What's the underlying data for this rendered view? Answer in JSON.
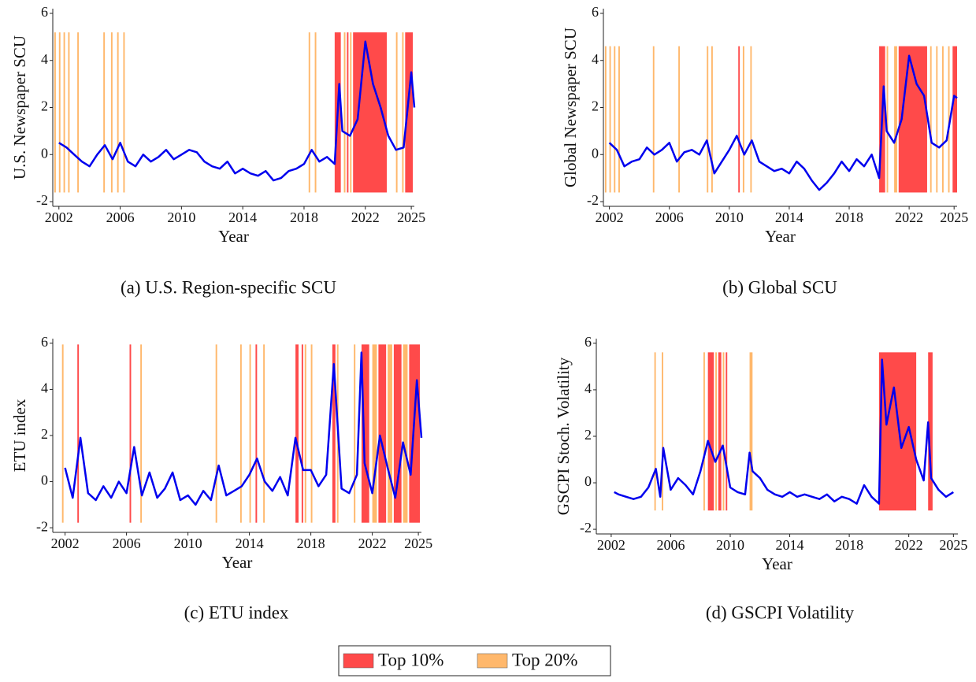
{
  "legend": {
    "items": [
      "Top 10%",
      "Top 20%"
    ],
    "colors": [
      "#ff4a4a",
      "#ffb86c"
    ]
  },
  "chart_data": [
    {
      "type": "line",
      "caption": "(a) U.S. Region-specific SCU",
      "x_label": "Year",
      "y_label": "U.S. Newspaper SCU",
      "color": "#0000ee",
      "xlim": [
        2001.6,
        2025.2
      ],
      "ylim": [
        -2.2,
        6.2
      ],
      "xticks": [
        2002,
        2006,
        2010,
        2014,
        2018,
        2022,
        2025
      ],
      "yticks": [
        -2,
        0,
        2,
        4,
        6
      ],
      "x": [
        2002,
        2002.5,
        2003,
        2003.5,
        2004,
        2004.5,
        2005,
        2005.5,
        2006,
        2006.5,
        2007,
        2007.5,
        2008,
        2008.5,
        2009,
        2009.5,
        2010,
        2010.5,
        2011,
        2011.5,
        2012,
        2012.5,
        2013,
        2013.5,
        2014,
        2014.5,
        2015,
        2015.5,
        2016,
        2016.5,
        2017,
        2017.5,
        2018,
        2018.5,
        2019,
        2019.5,
        2020,
        2020.3,
        2020.5,
        2021,
        2021.5,
        2022,
        2022.5,
        2023,
        2023.5,
        2024,
        2024.5,
        2025,
        2025.2
      ],
      "values": [
        0.5,
        0.3,
        0,
        -0.3,
        -0.5,
        0,
        0.4,
        -0.2,
        0.5,
        -0.3,
        -0.5,
        0,
        -0.3,
        -0.1,
        0.2,
        -0.2,
        0,
        0.2,
        0.1,
        -0.3,
        -0.5,
        -0.6,
        -0.3,
        -0.8,
        -0.6,
        -0.8,
        -0.9,
        -0.7,
        -1.1,
        -1,
        -0.7,
        -0.6,
        -0.4,
        0.2,
        -0.3,
        -0.1,
        -0.4,
        3,
        1,
        0.8,
        1.5,
        4.8,
        3,
        2,
        0.8,
        0.2,
        0.3,
        3.5,
        2
      ],
      "bands": [
        [
          [
            2020,
            2020.4
          ],
          [
            2020.8,
            2020.9
          ],
          [
            2021.2,
            2023.4
          ],
          [
            2024.6,
            2025.1
          ]
        ],
        [
          [
            2001.7,
            2001.8
          ],
          [
            2002,
            2002.1
          ],
          [
            2002.3,
            2002.4
          ],
          [
            2002.6,
            2002.7
          ],
          [
            2003.2,
            2003.3
          ],
          [
            2004.9,
            2005
          ],
          [
            2005.4,
            2005.5
          ],
          [
            2005.8,
            2005.9
          ],
          [
            2006.2,
            2006.3
          ],
          [
            2018.3,
            2018.4
          ],
          [
            2018.7,
            2018.8
          ],
          [
            2020.6,
            2020.7
          ],
          [
            2021,
            2021.1
          ],
          [
            2024,
            2024.1
          ],
          [
            2024.4,
            2024.5
          ]
        ]
      ]
    },
    {
      "type": "line",
      "caption": "(b) Global SCU",
      "x_label": "Year",
      "y_label": "Global Newspaper SCU",
      "color": "#0000ee",
      "xlim": [
        2001.6,
        2025.2
      ],
      "ylim": [
        -2.2,
        6.2
      ],
      "xticks": [
        2002,
        2006,
        2010,
        2014,
        2018,
        2022,
        2025
      ],
      "yticks": [
        -2,
        0,
        2,
        4,
        6
      ],
      "x": [
        2002,
        2002.5,
        2003,
        2003.5,
        2004,
        2004.5,
        2005,
        2005.5,
        2006,
        2006.5,
        2007,
        2007.5,
        2008,
        2008.5,
        2009,
        2009.5,
        2010,
        2010.5,
        2011,
        2011.5,
        2012,
        2012.5,
        2013,
        2013.5,
        2014,
        2014.5,
        2015,
        2015.5,
        2016,
        2016.5,
        2017,
        2017.5,
        2018,
        2018.5,
        2019,
        2019.5,
        2020,
        2020.3,
        2020.5,
        2021,
        2021.5,
        2022,
        2022.5,
        2023,
        2023.5,
        2024,
        2024.5,
        2025,
        2025.2
      ],
      "values": [
        0.5,
        0.2,
        -0.5,
        -0.3,
        -0.2,
        0.3,
        0,
        0.2,
        0.5,
        -0.3,
        0.1,
        0.2,
        0,
        0.6,
        -0.8,
        -0.3,
        0.2,
        0.8,
        0,
        0.6,
        -0.3,
        -0.5,
        -0.7,
        -0.6,
        -0.8,
        -0.3,
        -0.6,
        -1.1,
        -1.5,
        -1.2,
        -0.8,
        -0.3,
        -0.7,
        -0.2,
        -0.5,
        0,
        -1,
        2.9,
        1,
        0.5,
        1.5,
        4.2,
        3,
        2.5,
        0.5,
        0.3,
        0.6,
        2.5,
        2.4
      ],
      "bands": [
        [
          [
            2010.6,
            2010.7
          ],
          [
            2020,
            2020.4
          ],
          [
            2021.3,
            2023.2
          ],
          [
            2024.9,
            2025.2
          ]
        ],
        [
          [
            2001.7,
            2001.8
          ],
          [
            2002,
            2002.1
          ],
          [
            2002.3,
            2002.4
          ],
          [
            2002.6,
            2002.7
          ],
          [
            2004.9,
            2005
          ],
          [
            2006.6,
            2006.7
          ],
          [
            2008.5,
            2008.6
          ],
          [
            2008.8,
            2008.9
          ],
          [
            2010.9,
            2011
          ],
          [
            2011.4,
            2011.5
          ],
          [
            2020.5,
            2020.6
          ],
          [
            2021,
            2021.2
          ],
          [
            2023.4,
            2023.5
          ],
          [
            2023.8,
            2023.9
          ],
          [
            2024.2,
            2024.3
          ],
          [
            2024.6,
            2024.7
          ]
        ]
      ]
    },
    {
      "type": "line",
      "caption": "(c) ETU index",
      "x_label": "Year",
      "y_label": "ETU index",
      "color": "#0000ee",
      "xlim": [
        2001.2,
        2025.2
      ],
      "ylim": [
        -2.2,
        6.2
      ],
      "xticks": [
        2002,
        2006,
        2010,
        2014,
        2018,
        2022,
        2025
      ],
      "yticks": [
        -2,
        0,
        2,
        4,
        6
      ],
      "x": [
        2002,
        2002.5,
        2003,
        2003.5,
        2004,
        2004.5,
        2005,
        2005.5,
        2006,
        2006.5,
        2007,
        2007.5,
        2008,
        2008.5,
        2009,
        2009.5,
        2010,
        2010.5,
        2011,
        2011.5,
        2012,
        2012.5,
        2013,
        2013.5,
        2014,
        2014.5,
        2015,
        2015.5,
        2016,
        2016.5,
        2017,
        2017.5,
        2018,
        2018.5,
        2019,
        2019.5,
        2020,
        2020.5,
        2021,
        2021.3,
        2021.5,
        2022,
        2022.5,
        2023,
        2023.5,
        2024,
        2024.5,
        2024.9,
        2025.2
      ],
      "values": [
        0.6,
        -0.7,
        1.9,
        -0.5,
        -0.8,
        -0.2,
        -0.7,
        0,
        -0.5,
        1.5,
        -0.6,
        0.4,
        -0.7,
        -0.3,
        0.4,
        -0.8,
        -0.6,
        -1,
        -0.4,
        -0.8,
        0.7,
        -0.6,
        -0.4,
        -0.2,
        0.3,
        1,
        0,
        -0.4,
        0.2,
        -0.6,
        1.9,
        0.5,
        0.5,
        -0.2,
        0.3,
        5.1,
        -0.3,
        -0.5,
        0.3,
        5.6,
        0.8,
        -0.5,
        2,
        0.6,
        -0.7,
        1.7,
        0.3,
        4.4,
        1.9
      ],
      "bands": [
        [
          [
            2002.8,
            2002.9
          ],
          [
            2006.2,
            2006.3
          ],
          [
            2014.4,
            2014.5
          ],
          [
            2017,
            2017.2
          ],
          [
            2017.4,
            2017.5
          ],
          [
            2019.4,
            2019.6
          ],
          [
            2021.3,
            2021.8
          ],
          [
            2022.4,
            2022.9
          ],
          [
            2023.4,
            2023.9
          ],
          [
            2024.4,
            2025.1
          ]
        ],
        [
          [
            2001.8,
            2001.9
          ],
          [
            2006.9,
            2007
          ],
          [
            2011.8,
            2011.9
          ],
          [
            2013.4,
            2013.5
          ],
          [
            2014,
            2014.1
          ],
          [
            2014.9,
            2015
          ],
          [
            2017.6,
            2017.7
          ],
          [
            2018,
            2018.1
          ],
          [
            2019.7,
            2019.8
          ],
          [
            2020.8,
            2020.9
          ],
          [
            2022,
            2022.3
          ],
          [
            2023,
            2023.3
          ],
          [
            2024,
            2024.3
          ]
        ]
      ]
    },
    {
      "type": "line",
      "caption": "(d) GSCPI Volatility",
      "x_label": "Year",
      "y_label": "GSCPI Stoch. Volatility",
      "color": "#0000ee",
      "xlim": [
        2001,
        2025.3
      ],
      "ylim": [
        -2.2,
        6.2
      ],
      "xticks": [
        2002,
        2006,
        2010,
        2014,
        2018,
        2022,
        2025
      ],
      "yticks": [
        -2,
        0,
        2,
        4,
        6
      ],
      "x": [
        2002.2,
        2002.5,
        2003,
        2003.5,
        2004,
        2004.5,
        2005,
        2005.3,
        2005.5,
        2006,
        2006.5,
        2007,
        2007.5,
        2008,
        2008.5,
        2009,
        2009.5,
        2010,
        2010.5,
        2011,
        2011.3,
        2011.5,
        2012,
        2012.5,
        2013,
        2013.5,
        2014,
        2014.5,
        2015,
        2015.5,
        2016,
        2016.5,
        2017,
        2017.5,
        2018,
        2018.5,
        2019,
        2019.5,
        2020,
        2020.2,
        2020.5,
        2021,
        2021.5,
        2022,
        2022.5,
        2023,
        2023.3,
        2023.5,
        2024,
        2024.5,
        2025
      ],
      "values": [
        -0.4,
        -0.5,
        -0.6,
        -0.7,
        -0.6,
        -0.2,
        0.6,
        -0.6,
        1.5,
        -0.3,
        0.2,
        -0.1,
        -0.5,
        0.5,
        1.8,
        0.9,
        1.6,
        -0.2,
        -0.4,
        -0.5,
        1.3,
        0.5,
        0.2,
        -0.3,
        -0.5,
        -0.6,
        -0.4,
        -0.6,
        -0.5,
        -0.6,
        -0.7,
        -0.5,
        -0.8,
        -0.6,
        -0.7,
        -0.9,
        -0.1,
        -0.6,
        -0.9,
        5.3,
        2.5,
        4.1,
        1.5,
        2.4,
        1,
        0.1,
        2.6,
        0.2,
        -0.3,
        -0.6,
        -0.4
      ],
      "bands": [
        [
          [
            2008.5,
            2008.9
          ],
          [
            2009.2,
            2009.4
          ],
          [
            2009.7,
            2009.8
          ],
          [
            2020,
            2022.5
          ],
          [
            2023.3,
            2023.6
          ]
        ],
        [
          [
            2004.9,
            2005
          ],
          [
            2005.4,
            2005.5
          ],
          [
            2008.2,
            2008.3
          ],
          [
            2009,
            2009.1
          ],
          [
            2009.5,
            2009.6
          ],
          [
            2011.3,
            2011.5
          ]
        ]
      ]
    }
  ]
}
